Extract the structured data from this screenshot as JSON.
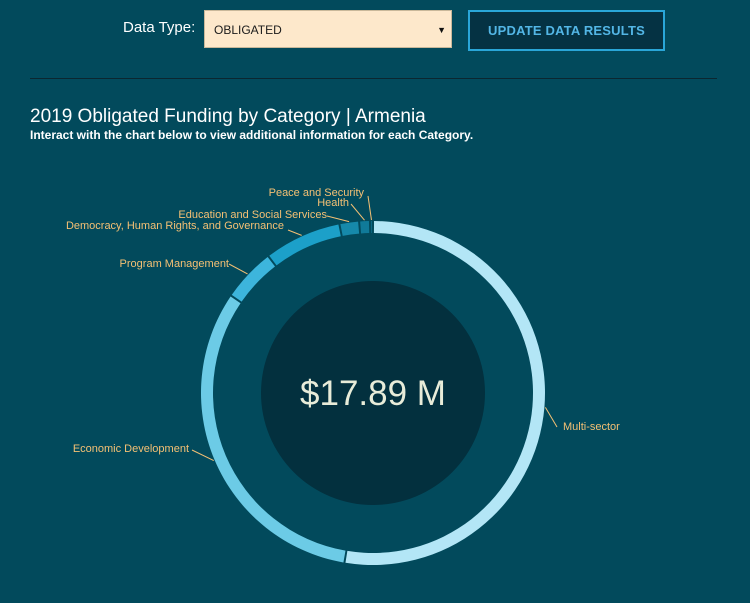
{
  "filters": {
    "data_type_label": "Data Type:",
    "data_type_value": "OBLIGATED",
    "update_button_label": "UPDATE DATA RESULTS"
  },
  "chart": {
    "title": "2019 Obligated Funding by Category | Armenia",
    "subtitle": "Interact with the chart below to view additional information for each Category.",
    "total_label": "$17.89 M"
  },
  "colors": {
    "background": "#024a5c",
    "center_disc": "#03303e",
    "label": "#f4c074"
  },
  "chart_data": {
    "type": "pie",
    "variant": "donut",
    "total": 17.89,
    "unit": "$ M",
    "categories": [
      "Multi-sector",
      "Economic Development",
      "Program Management",
      "Democracy, Human Rights, and Governance",
      "Education and Social Services",
      "Health",
      "Peace and Security"
    ],
    "values": [
      9.42,
      5.71,
      0.9,
      1.3,
      0.33,
      0.18,
      0.05
    ],
    "slice_colors": [
      "#b3e6f6",
      "#6ccbe6",
      "#3db5dc",
      "#1ca0c9",
      "#1689aa",
      "#107a99",
      "#0c6b86"
    ]
  }
}
